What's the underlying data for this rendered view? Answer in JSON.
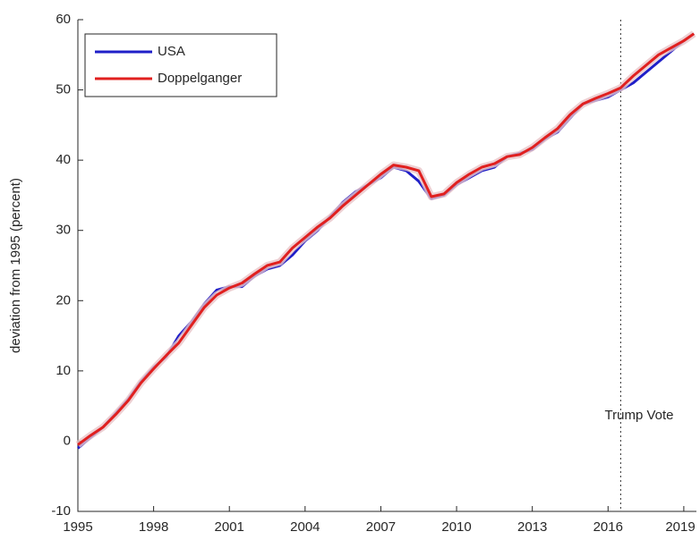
{
  "chart_data": {
    "type": "line",
    "y_label": "deviation from 1995 (percent)",
    "annotation": "Trump Vote",
    "vline": 2016.5,
    "x": [
      1995,
      1995.5,
      1996,
      1996.5,
      1997,
      1997.5,
      1998,
      1998.5,
      1999,
      1999.5,
      2000,
      2000.5,
      2001,
      2001.5,
      2002,
      2002.5,
      2003,
      2003.5,
      2004,
      2004.5,
      2005,
      2005.5,
      2006,
      2006.5,
      2007,
      2007.5,
      2008,
      2008.5,
      2009,
      2009.5,
      2010,
      2010.5,
      2011,
      2011.5,
      2012,
      2012.5,
      2013,
      2013.5,
      2014,
      2014.5,
      2015,
      2015.5,
      2016,
      2016.5,
      2017,
      2017.5,
      2018,
      2018.5,
      2019,
      2019.4
    ],
    "series": [
      {
        "name": "USA",
        "color": "#1f1fc8",
        "values": [
          -1,
          0.5,
          2,
          4,
          6,
          8.5,
          10.5,
          12,
          15,
          17,
          19.5,
          21.5,
          22,
          22,
          23.5,
          24.5,
          25,
          26.5,
          28.5,
          30,
          32,
          34,
          35.5,
          36.5,
          37.5,
          39,
          38.5,
          37,
          34.5,
          35,
          36.5,
          37.5,
          38.5,
          39,
          40.5,
          41,
          41.5,
          43,
          44,
          46,
          48,
          48.5,
          49,
          50,
          51,
          52.5,
          54,
          55.5,
          57,
          58
        ]
      },
      {
        "name": "Doppelganger",
        "color": "#e0201f",
        "values": [
          -0.5,
          0.8,
          2,
          3.8,
          5.8,
          8.3,
          10.3,
          12.2,
          14,
          16.5,
          19,
          20.8,
          21.8,
          22.5,
          23.8,
          25,
          25.5,
          27.5,
          29,
          30.5,
          31.8,
          33.5,
          35,
          36.5,
          38,
          39.3,
          39,
          38.5,
          34.8,
          35.2,
          36.8,
          38,
          39,
          39.5,
          40.5,
          40.8,
          41.8,
          43.2,
          44.5,
          46.5,
          48,
          48.8,
          49.5,
          50.3,
          52,
          53.5,
          55,
          56,
          57,
          58
        ]
      }
    ],
    "xlim": [
      1995,
      2019.5
    ],
    "xticks": [
      1995,
      1998,
      2001,
      2004,
      2007,
      2010,
      2013,
      2016,
      2019
    ],
    "ylim": [
      -10,
      60
    ],
    "yticks": [
      -10,
      0,
      10,
      20,
      30,
      40,
      50,
      60
    ],
    "legend": "upper left"
  }
}
